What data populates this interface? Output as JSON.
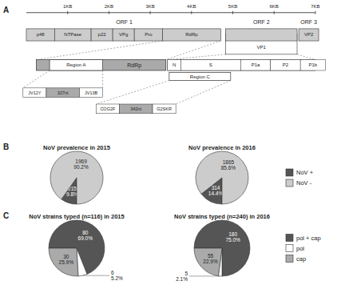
{
  "chart_data": [
    {
      "type": "diagram",
      "annotations": [
        "A",
        "1KB",
        "2KB",
        "3KB",
        "4KB",
        "5KB",
        "6KB",
        "7KB",
        "ORF 1",
        "ORF 2",
        "ORF 3",
        "p48",
        "NTPase",
        "p22",
        "VPg",
        "Pro",
        "RdRp",
        "VP1",
        "VP2",
        "RdRp",
        "Region A",
        "Region C",
        "N",
        "S",
        "P1a",
        "P2",
        "P1b",
        "JV12Y",
        "327nt",
        "JV13B",
        "COG2F",
        "342nt",
        "G2SKR"
      ]
    },
    {
      "type": "pie",
      "title": "NoV prevalence in 2015",
      "annotations": [
        "B"
      ],
      "categories": [
        "NoV +",
        "NoV -"
      ],
      "values": [
        215,
        1969
      ],
      "value_labels": [
        "215\n9.8%",
        "1969\n90.2%"
      ],
      "colors": [
        "#555555",
        "#cccccc"
      ],
      "data_labels": true,
      "legend": "right"
    },
    {
      "type": "pie",
      "title": "NoV prevalence in 2016",
      "categories": [
        "NoV +",
        "NoV -"
      ],
      "values": [
        314,
        1865
      ],
      "value_labels": [
        "314\n14.4%",
        "1865\n85.6%"
      ],
      "colors": [
        "#555555",
        "#cccccc"
      ],
      "data_labels": true
    },
    {
      "type": "pie",
      "title": "NoV strains typed (n=116) in 2015",
      "annotations": [
        "C"
      ],
      "categories": [
        "pol + cap",
        "pol",
        "cap"
      ],
      "values": [
        80,
        6,
        30
      ],
      "value_labels": [
        "80\n69.0%",
        "6\n5.2%",
        "30\n25.9%"
      ],
      "colors": [
        "#555555",
        "#ffffff",
        "#aaaaaa"
      ],
      "data_labels": true,
      "legend": "right"
    },
    {
      "type": "pie",
      "title": "NoV strains typed (n=240) in 2016",
      "categories": [
        "pol + cap",
        "pol",
        "cap"
      ],
      "values": [
        180,
        5,
        55
      ],
      "value_labels": [
        "180\n75.0%",
        "5\n2.1%",
        "55\n22.9%"
      ],
      "colors": [
        "#555555",
        "#ffffff",
        "#aaaaaa"
      ],
      "data_labels": true
    }
  ]
}
